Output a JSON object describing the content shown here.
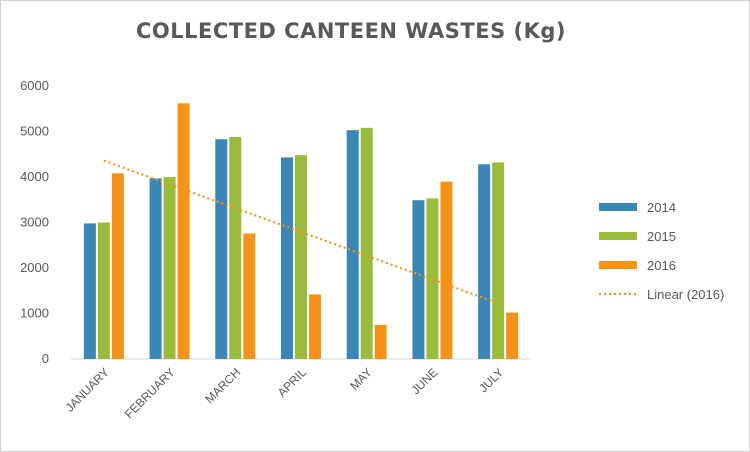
{
  "chart_data": {
    "type": "bar",
    "title": "COLLECTED CANTEEN WASTES (Kg)",
    "categories": [
      "JANUARY",
      "FEBRUARY",
      "MARCH",
      "APRIL",
      "MAY",
      "JUNE",
      "JULY"
    ],
    "series": [
      {
        "name": "2014",
        "color": "#3a87b5",
        "values": [
          2980,
          3970,
          4830,
          4430,
          5030,
          3490,
          4280
        ]
      },
      {
        "name": "2015",
        "color": "#9bbb3c",
        "values": [
          3000,
          4000,
          4880,
          4480,
          5080,
          3530,
          4320
        ]
      },
      {
        "name": "2016",
        "color": "#f59318",
        "values": [
          4080,
          5620,
          2760,
          1420,
          750,
          3900,
          1020
        ]
      }
    ],
    "trendline": {
      "name": "Linear (2016)",
      "series": "2016",
      "type": "linear",
      "color": "#f59318"
    },
    "ylim": [
      0,
      6000
    ],
    "yticks": [
      0,
      1000,
      2000,
      3000,
      4000,
      5000,
      6000
    ],
    "xlabel": "",
    "ylabel": "",
    "grid": false,
    "legend_position": "right"
  }
}
